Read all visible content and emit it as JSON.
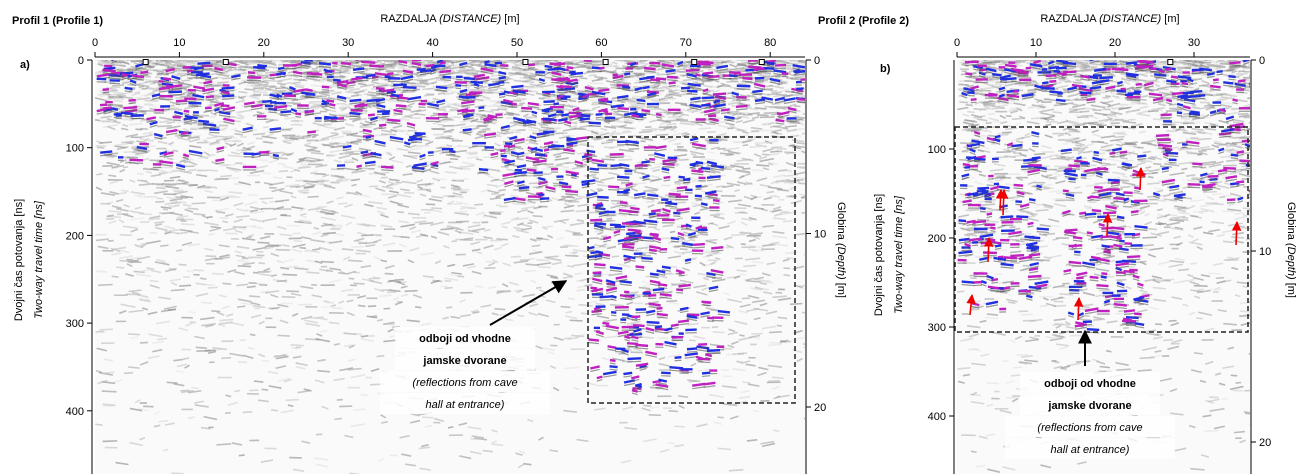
{
  "panels": [
    {
      "title": "Profil 1 (Profile 1)",
      "panel_label": "a)",
      "x_axis_label": {
        "main": "RAZDALJA ",
        "italic": "(DISTANCE)",
        "unit": " [m]"
      },
      "x_ticks": [
        0,
        10,
        20,
        30,
        40,
        50,
        60,
        70,
        80
      ],
      "y_ticks": [
        0,
        100,
        200,
        300,
        400
      ],
      "y_label": "Dvojni čas potovanja [ns]",
      "y_label_italic": "Two-way travel time [ns]",
      "depth_label": {
        "main": "Globina ",
        "italic": "(Depth)",
        "unit": " [m]"
      },
      "depth_ticks": [
        0,
        10,
        20
      ],
      "annotation": {
        "bold": [
          "odboji od vhodne",
          "jamske dvorane"
        ],
        "italic": [
          "(reflections from cave",
          "hall at entrance)"
        ]
      }
    },
    {
      "title": "Profil 2 (Profile 2)",
      "panel_label": "b)",
      "x_axis_label": {
        "main": "RAZDALJA ",
        "italic": "(DISTANCE)",
        "unit": " [m]"
      },
      "x_ticks": [
        0,
        10,
        20,
        30
      ],
      "y_ticks": [
        100,
        200,
        300,
        400
      ],
      "y_label": "Dvojni čas potovanja [ns]",
      "y_label_italic": "Two-way travel time [ns]",
      "depth_label": {
        "main": "Globina ",
        "italic": "(Depth)",
        "unit": " [m]"
      },
      "depth_ticks": [
        0,
        10,
        20
      ],
      "annotation": {
        "bold": [
          "odboji od vhodne",
          "jamske dvorane"
        ],
        "italic": [
          "(reflections from cave",
          "hall at entrance)"
        ]
      }
    }
  ]
}
